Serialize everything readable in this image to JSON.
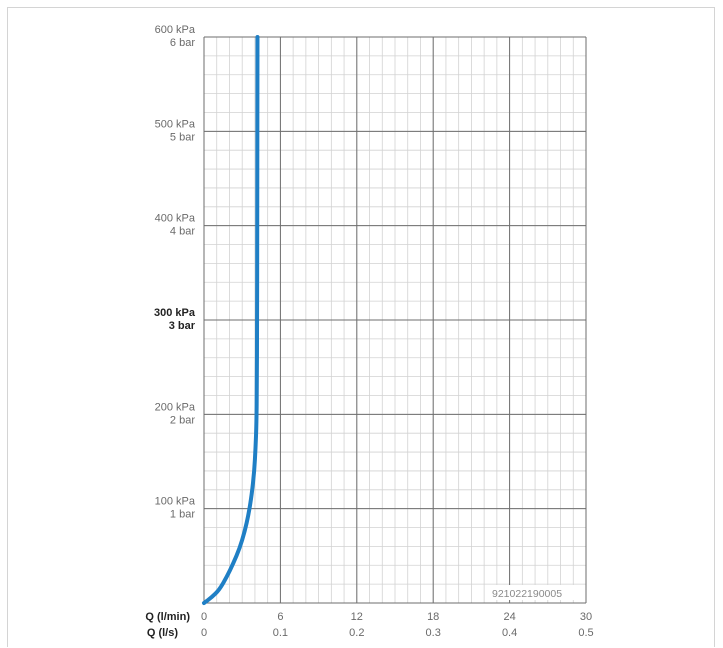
{
  "chart_data": {
    "type": "line",
    "y_axis": {
      "unit_primary": "kPa",
      "unit_secondary": "bar",
      "ylim": [
        0,
        600
      ],
      "major_ticks": [
        {
          "value": 100,
          "kpa_label": "100 kPa",
          "bar_label": "1 bar",
          "bold": false
        },
        {
          "value": 200,
          "kpa_label": "200 kPa",
          "bar_label": "2 bar",
          "bold": false
        },
        {
          "value": 300,
          "kpa_label": "300 kPa",
          "bar_label": "3 bar",
          "bold": true
        },
        {
          "value": 400,
          "kpa_label": "400 kPa",
          "bar_label": "4 bar",
          "bold": false
        },
        {
          "value": 500,
          "kpa_label": "500 kPa",
          "bar_label": "5 bar",
          "bold": false
        },
        {
          "value": 600,
          "kpa_label": "600 kPa",
          "bar_label": "6 bar",
          "bold": false
        }
      ],
      "minor_step": 20
    },
    "x_axis": {
      "xlim": [
        0,
        30
      ],
      "label_lpm": "Q (l/min)",
      "label_lps": "Q (l/s)",
      "ticks_lpm": [
        "0",
        "6",
        "12",
        "18",
        "24",
        "30"
      ],
      "ticks_lps": [
        "0",
        "0.1",
        "0.2",
        "0.3",
        "0.4",
        "0.5"
      ],
      "major_step": 6,
      "minor_step": 1
    },
    "series": [
      {
        "color": "#1f7fc5",
        "points": [
          [
            0,
            0
          ],
          [
            0.6,
            6
          ],
          [
            1.2,
            14
          ],
          [
            1.8,
            28
          ],
          [
            2.3,
            42
          ],
          [
            2.8,
            58
          ],
          [
            3.2,
            76
          ],
          [
            3.5,
            94
          ],
          [
            3.75,
            115
          ],
          [
            3.95,
            140
          ],
          [
            4.05,
            165
          ],
          [
            4.12,
            190
          ],
          [
            4.15,
            230
          ],
          [
            4.17,
            300
          ],
          [
            4.18,
            400
          ],
          [
            4.2,
            600
          ]
        ]
      }
    ],
    "grid": true,
    "annotation": "921022190005"
  },
  "colors": {
    "grid_major": "#6e6e6e",
    "grid_minor": "#d2d2d2",
    "tick_text": "#6a6a6a",
    "axis_label_text": "#222222"
  }
}
